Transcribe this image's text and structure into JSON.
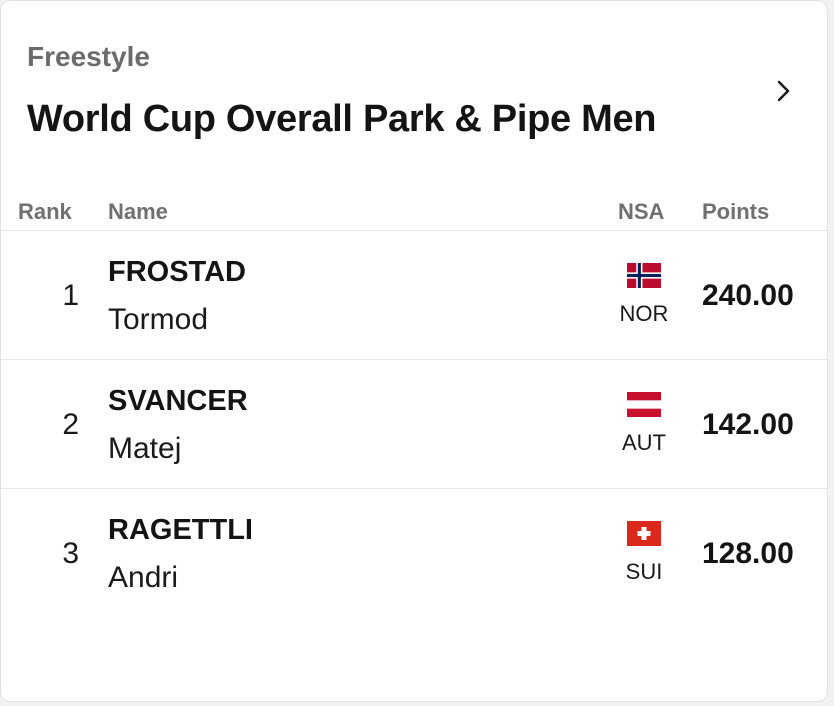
{
  "header": {
    "category": "Freestyle",
    "title": "World Cup Overall Park & Pipe Men",
    "chevron_icon": "chevron-right-icon"
  },
  "table": {
    "columns": {
      "rank": "Rank",
      "name": "Name",
      "nsa": "NSA",
      "points": "Points"
    },
    "rows": [
      {
        "rank": "1",
        "surname": "FROSTAD",
        "firstname": "Tormod",
        "nsa": "NOR",
        "flag_icon": "norway-flag-icon",
        "points": "240.00"
      },
      {
        "rank": "2",
        "surname": "SVANCER",
        "firstname": "Matej",
        "nsa": "AUT",
        "flag_icon": "austria-flag-icon",
        "points": "142.00"
      },
      {
        "rank": "3",
        "surname": "RAGETTLI",
        "firstname": "Andri",
        "nsa": "SUI",
        "flag_icon": "switzerland-flag-icon",
        "points": "128.00"
      }
    ]
  },
  "colors": {
    "norway_red": "#ba0c2f",
    "norway_blue": "#00205b",
    "austria_red": "#c8102e",
    "swiss_red": "#da291c",
    "text_dark": "#141414",
    "text_muted": "#6b6b6b"
  }
}
